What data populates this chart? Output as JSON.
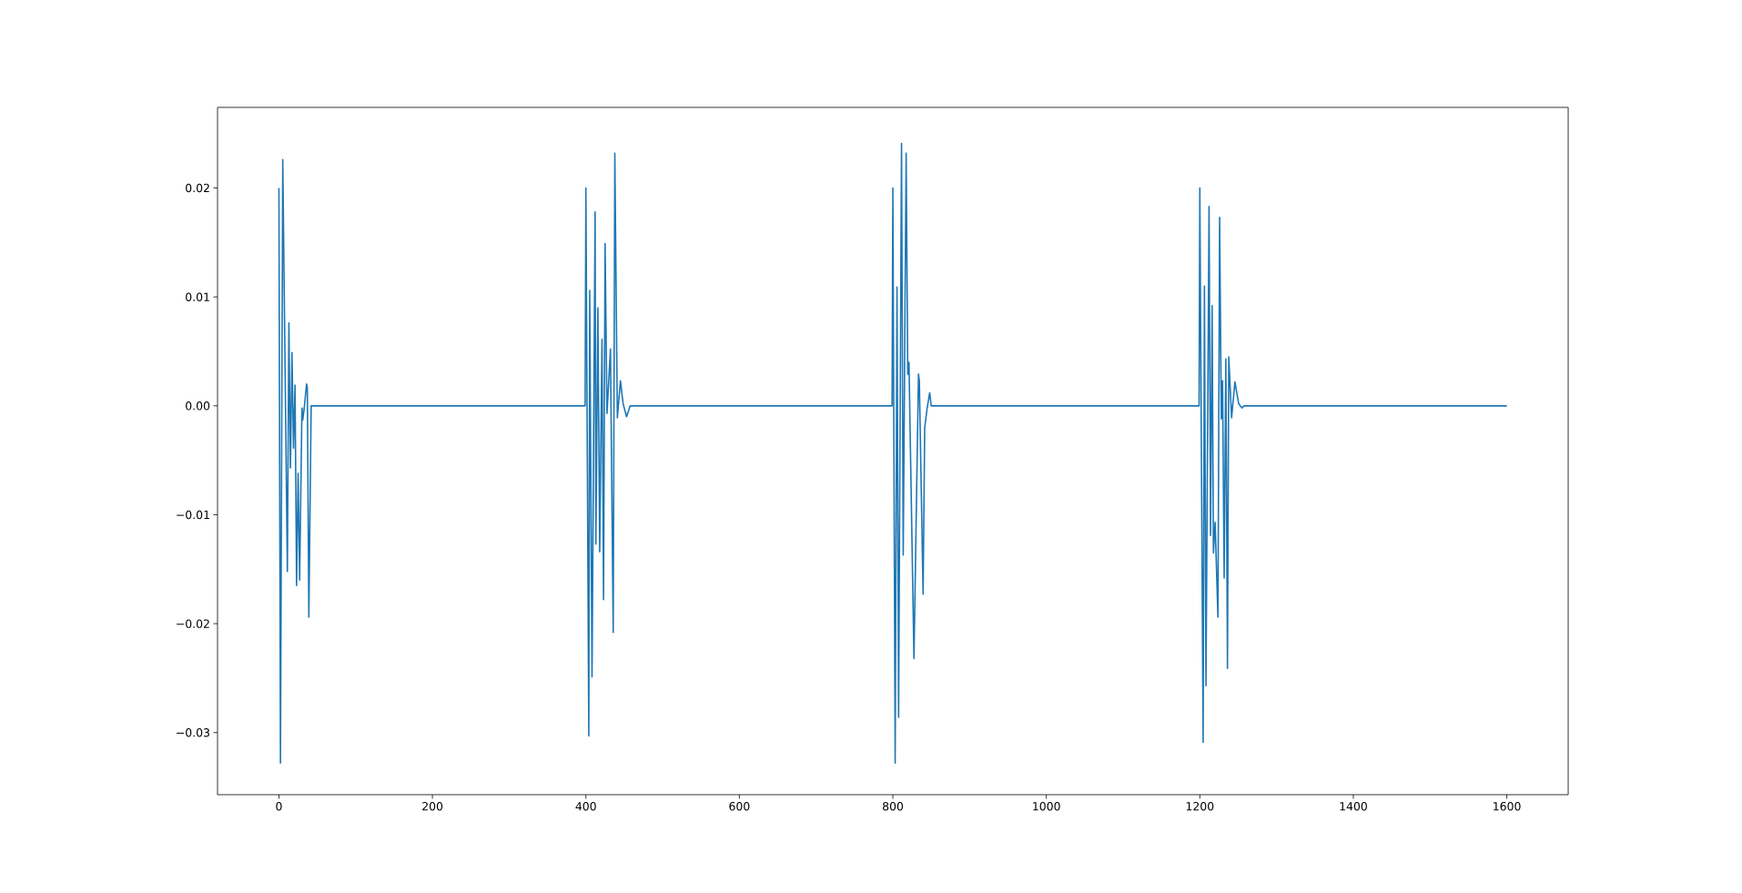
{
  "chart_data": {
    "type": "line",
    "x": [
      0,
      2,
      5,
      11,
      13,
      15,
      17,
      19,
      21,
      23,
      25,
      27,
      30,
      31,
      33,
      36,
      37,
      39,
      42,
      399,
      400,
      403.8,
      405,
      408,
      412,
      413,
      415.6,
      418,
      421,
      423,
      425,
      427.5,
      432,
      435.6,
      437.7,
      441,
      445,
      448.5,
      453,
      457.7,
      799,
      800,
      803,
      805.4,
      807.5,
      811.3,
      813.5,
      817.3,
      819.4,
      821,
      827.5,
      833.4,
      834.5,
      839.4,
      841.5,
      844.7,
      848,
      850,
      1199,
      1200,
      1204.3,
      1206,
      1208,
      1212,
      1214,
      1216,
      1217.7,
      1219.9,
      1223.6,
      1225.8,
      1228,
      1229.6,
      1231.7,
      1233.9,
      1236,
      1237.7,
      1241.4,
      1245.7,
      1250.6,
      1255,
      1257.6,
      1600
    ],
    "series": [
      {
        "color": "#1f77b4",
        "values": [
          0.02,
          -0.0328,
          0.0226,
          -0.0152,
          0.0076,
          -0.0057,
          0.0049,
          -0.0039,
          0.0019,
          -0.0165,
          -0.0062,
          -0.016,
          -0.0002,
          -0.0013,
          -0.0002,
          0.002,
          0.0017,
          -0.0194,
          0,
          0,
          0.02,
          -0.0303,
          0.0106,
          -0.0249,
          0.0178,
          -0.0127,
          0.009,
          -0.0134,
          0.0061,
          -0.0178,
          0.0149,
          -0.0007,
          0.0052,
          -0.0208,
          0.0232,
          -0.0011,
          0.0023,
          0.0002,
          -0.001,
          0,
          0,
          0.02,
          -0.0328,
          0.0109,
          -0.0286,
          0.0241,
          -0.0137,
          0.0232,
          0.0029,
          0.004,
          -0.0232,
          0.0029,
          0.0023,
          -0.0173,
          -0.002,
          -0.0002,
          0.0012,
          0,
          0,
          0.02,
          -0.0309,
          0.011,
          -0.0257,
          0.0183,
          -0.0119,
          0.0092,
          -0.0135,
          -0.0107,
          -0.0194,
          0.0173,
          -0.0012,
          0.0023,
          -0.0158,
          0.0043,
          -0.0241,
          0.0045,
          -0.0011,
          0.0022,
          0.0002,
          -0.0002,
          0,
          0
        ]
      }
    ],
    "xlim": [
      -80,
      1680
    ],
    "ylim": [
      -0.0357,
      0.0274
    ],
    "xticks": [
      0,
      200,
      400,
      600,
      800,
      1000,
      1200,
      1400,
      1600
    ],
    "yticks": [
      {
        "value": -0.03,
        "label": "−0.03"
      },
      {
        "value": -0.02,
        "label": "−0.02"
      },
      {
        "value": -0.01,
        "label": "−0.01"
      },
      {
        "value": 0.0,
        "label": "0.00"
      },
      {
        "value": 0.01,
        "label": "0.01"
      },
      {
        "value": 0.02,
        "label": "0.02"
      }
    ],
    "marker": "none",
    "line_style": "solid"
  }
}
